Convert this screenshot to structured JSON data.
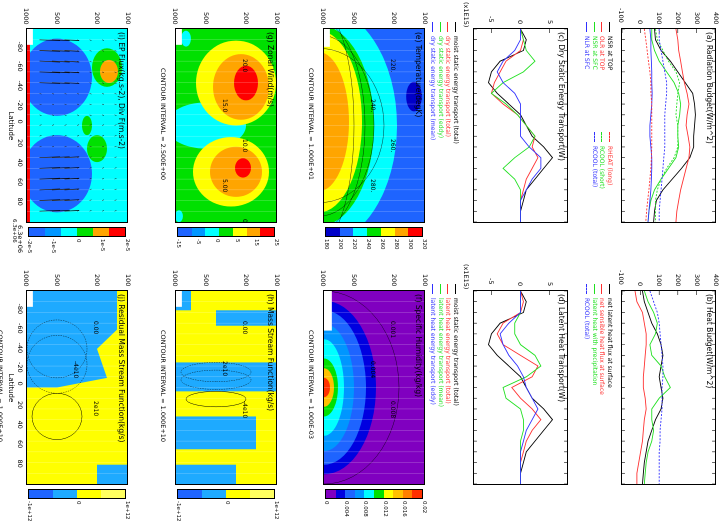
{
  "colors": {
    "black": "#000000",
    "red": "#ff3030",
    "green": "#20e020",
    "blue": "#3030ff"
  },
  "latitudes": [
    -90,
    -80,
    -70,
    -60,
    -50,
    -40,
    -30,
    -20,
    -10,
    0,
    10,
    20,
    30,
    40,
    50,
    60,
    70,
    80,
    90
  ],
  "pressure_ticks": [
    "100",
    "200",
    "500",
    "1000"
  ],
  "lat_tick_labels": [
    "-80",
    "-60",
    "-40",
    "-20",
    "0",
    "20",
    "40",
    "60",
    "80"
  ],
  "xlabel": "Latitude",
  "chart_data": [
    {
      "id": "a",
      "type": "line",
      "title": "(a) Radiation Budget(W/m^2)",
      "ylim": [
        -100,
        400
      ],
      "yticks": [
        "400",
        "300",
        "200",
        "100",
        "0",
        "-100"
      ],
      "series": [
        {
          "name": "NSR at TOP",
          "color": "#000000",
          "dash": false,
          "values": [
            75,
            80,
            110,
            160,
            200,
            240,
            280,
            290,
            295,
            290,
            285,
            285,
            265,
            220,
            170,
            120,
            85,
            75,
            70
          ]
        },
        {
          "name": "OLR at TOP",
          "color": "#ff3030",
          "dash": false,
          "values": [
            190,
            200,
            205,
            215,
            225,
            235,
            250,
            260,
            250,
            245,
            255,
            265,
            260,
            245,
            230,
            215,
            205,
            195,
            190
          ]
        },
        {
          "name": "NSR at SFC",
          "color": "#20e020",
          "dash": false,
          "values": [
            60,
            60,
            75,
            100,
            140,
            180,
            205,
            215,
            210,
            200,
            200,
            205,
            190,
            150,
            110,
            75,
            55,
            45,
            40
          ]
        },
        {
          "name": "NLR at SFC",
          "color": "#3030ff",
          "dash": false,
          "values": [
            50,
            55,
            55,
            58,
            60,
            60,
            62,
            60,
            55,
            50,
            50,
            55,
            60,
            60,
            58,
            55,
            50,
            45,
            40
          ]
        },
        {
          "name": "RHEAT (long)",
          "color": "#ff3030",
          "dash": true,
          "values": [
            20,
            28,
            35,
            42,
            50,
            55,
            55,
            60,
            60,
            60,
            60,
            60,
            58,
            55,
            50,
            45,
            38,
            32,
            28
          ]
        },
        {
          "name": "RCOOL (short)",
          "color": "#20e020",
          "dash": true,
          "values": [
            80,
            90,
            120,
            150,
            190,
            210,
            200,
            195,
            190,
            200,
            200,
            200,
            180,
            140,
            110,
            90,
            80,
            80,
            80
          ]
        },
        {
          "name": "RCOOL (total)",
          "color": "#3030ff",
          "dash": true,
          "values": [
            100,
            100,
            110,
            120,
            130,
            140,
            140,
            135,
            130,
            130,
            130,
            130,
            125,
            120,
            115,
            110,
            105,
            100,
            100
          ]
        }
      ]
    },
    {
      "id": "b",
      "type": "line",
      "title": "(b) Heat Budget(W/m^2)",
      "ylim": [
        -100,
        400
      ],
      "yticks": [
        "400",
        "300",
        "200",
        "100",
        "0",
        "-100"
      ],
      "series": [
        {
          "name": "net latent heat flux at surface",
          "color": "#000000",
          "dash": false,
          "values": [
            10,
            20,
            40,
            60,
            90,
            110,
            120,
            110,
            100,
            110,
            120,
            110,
            80,
            60,
            40,
            30,
            20,
            15,
            10
          ]
        },
        {
          "name": "net sensible heat flux at surface",
          "color": "#ff3030",
          "dash": false,
          "values": [
            -30,
            -20,
            10,
            20,
            30,
            30,
            25,
            20,
            15,
            15,
            25,
            30,
            20,
            15,
            10,
            0,
            -10,
            -20,
            -20
          ]
        },
        {
          "name": "latent heat with precipitation",
          "color": "#20e020",
          "dash": false,
          "values": [
            20,
            40,
            70,
            90,
            80,
            50,
            60,
            110,
            130,
            160,
            100,
            60,
            60,
            70,
            60,
            40,
            30,
            25,
            20
          ]
        },
        {
          "name": "RCOOL (total)",
          "color": "#3030ff",
          "dash": true,
          "values": [
            50,
            70,
            90,
            100,
            105,
            110,
            115,
            120,
            120,
            115,
            115,
            115,
            110,
            105,
            105,
            100,
            100,
            100,
            100
          ]
        }
      ]
    },
    {
      "id": "c",
      "type": "line",
      "title": "(c) Dry Static Energy Transport(W)",
      "scale_label": "(x1E15)",
      "ylim": [
        -8,
        8
      ],
      "yticks": [
        "5",
        "0",
        "-5"
      ],
      "series": [
        {
          "name": "moist static energy transport (total)",
          "color": "#000000",
          "dash": false,
          "values": [
            0,
            1,
            0.5,
            -3.5,
            -5,
            -5.5,
            -4,
            -2,
            0,
            1,
            2,
            4,
            5.5,
            4,
            2.5,
            1,
            0.5,
            0,
            0
          ]
        },
        {
          "name": "dry static energy transport (total)",
          "color": "#ff3030",
          "dash": false,
          "values": [
            0,
            0.5,
            0,
            -2.5,
            -3.5,
            -4.5,
            -5,
            -3,
            -0.5,
            1,
            2.5,
            2,
            3,
            2,
            1,
            0.5,
            0,
            0,
            0
          ]
        },
        {
          "name": "dry static energy transport (eddy)",
          "color": "#20e020",
          "dash": false,
          "values": [
            0,
            0.5,
            1,
            2.5,
            0.5,
            -3,
            -5,
            -2.5,
            -0.5,
            1,
            2.5,
            1.5,
            -1,
            -3,
            -1,
            0,
            0,
            0,
            0
          ]
        },
        {
          "name": "dry static energy transport (mean)",
          "color": "#3030ff",
          "dash": false,
          "values": [
            0,
            0,
            -1,
            -3,
            -4,
            -3,
            -1,
            0,
            0,
            0,
            0,
            1.5,
            3.5,
            3.5,
            2,
            1,
            0,
            0,
            0
          ]
        }
      ]
    },
    {
      "id": "d",
      "type": "line",
      "title": "(d) Latent Heat Transport(W)",
      "scale_label": "(x1E15)",
      "ylim": [
        -8,
        8
      ],
      "yticks": [
        "5",
        "0",
        "-5"
      ],
      "series": [
        {
          "name": "moist static energy transport (total)",
          "color": "#000000",
          "dash": false,
          "values": [
            0,
            1,
            0.5,
            -3.5,
            -5,
            -5.5,
            -4,
            -2,
            0,
            1,
            2,
            4,
            5.5,
            4,
            2.5,
            1,
            0.5,
            0,
            0
          ]
        },
        {
          "name": "latent heat energy transport (total)",
          "color": "#ff3030",
          "dash": false,
          "values": [
            0,
            0.5,
            0,
            -3,
            -4,
            -3,
            0,
            3,
            2,
            -1.5,
            0,
            2,
            3.5,
            2,
            1,
            0.5,
            0,
            0,
            0
          ]
        },
        {
          "name": "latent heat energy transport (mean)",
          "color": "#20e020",
          "dash": false,
          "values": [
            0,
            0,
            0,
            -1,
            -1,
            0,
            2.5,
            3.5,
            1,
            -3,
            -2.5,
            0,
            0.5,
            0.5,
            0,
            0,
            0,
            0,
            0
          ]
        },
        {
          "name": "latent heat energy transport (eddy)",
          "color": "#3030ff",
          "dash": false,
          "values": [
            0,
            0,
            0,
            -2,
            -3.5,
            -3,
            -2,
            -0.5,
            0.5,
            1,
            2,
            3,
            2,
            1,
            0.5,
            0,
            0,
            0,
            0
          ]
        }
      ]
    },
    {
      "id": "e",
      "type": "heatmap",
      "title": "(e) Temperature(degK)",
      "contour_interval": "CONTOUR INTERVAL = 1.000E+01",
      "contour_labels": [
        "220.",
        "240.",
        "260.",
        "280."
      ],
      "colorbar": {
        "labels": [
          "180",
          "200",
          "220",
          "240",
          "260",
          "280",
          "300",
          "320"
        ],
        "colors": [
          "#0000c8",
          "#1e64ff",
          "#00ffff",
          "#00e000",
          "#ffff00",
          "#ffa500",
          "#ff0000"
        ]
      }
    },
    {
      "id": "f",
      "type": "heatmap",
      "title": "(f) Specific Humidity(kg/kg)",
      "contour_interval": "CONTOUR INTERVAL = 1.000E-03",
      "contour_labels": [
        "0.001",
        "0.004",
        "0.008"
      ],
      "colorbar": {
        "labels": [
          "0",
          "0.004",
          "0.008",
          "0.012",
          "0.016",
          "0.02"
        ],
        "colors": [
          "#8000c0",
          "#0000e0",
          "#1e64ff",
          "#0096ff",
          "#00ffff",
          "#00e000",
          "#ffff00",
          "#ffc000",
          "#ff8000",
          "#ff3000"
        ]
      }
    },
    {
      "id": "g",
      "type": "heatmap",
      "title": "(g) Zonal Wind(m/s)",
      "contour_interval": "CONTOUR INTERVAL = 2.500E+00",
      "contour_labels": [
        "20.0",
        "15.0",
        "10.0",
        "5.00",
        "0.00"
      ],
      "colorbar": {
        "labels": [
          "-15",
          "-5",
          "0",
          "5",
          "15",
          "25"
        ],
        "colors": [
          "#1e64ff",
          "#0096ff",
          "#00ffff",
          "#00e000",
          "#ffff00",
          "#ffa500",
          "#ff0000"
        ]
      }
    },
    {
      "id": "h",
      "type": "heatmap",
      "title": "(h) Mass Stream Function(kg/s)",
      "contour_interval": "CONTOUR INTERVAL = 1.000E+10",
      "contour_labels": [
        "0.00",
        "2e10",
        "-4e10"
      ],
      "colorbar": {
        "labels": [
          "-1e+12",
          "0",
          "1e+12"
        ],
        "colors": [
          "#1e64ff",
          "#1eaaff",
          "#ffff00",
          "#ffff60"
        ]
      }
    },
    {
      "id": "i",
      "type": "heatmap",
      "title": "(i) EP Flux(kg.s-2), Div F(m.s-2)",
      "arrow_scale": "6.3e+06",
      "arrow_scale2": "6.3e+06",
      "colorbar": {
        "labels": [
          "-2e-5",
          "-1e-5",
          "0",
          "1e-5",
          "2e-5"
        ],
        "colors": [
          "#1e64ff",
          "#0096ff",
          "#00ffff",
          "#00e000",
          "#ffa500",
          "#ff0000"
        ]
      }
    },
    {
      "id": "j",
      "type": "heatmap",
      "title": "(j) Residual Mass Stream Function(kg/s)",
      "contour_interval": "CONTOUR INTERVAL = 1.000E+10",
      "contour_labels": [
        "0.00",
        "-4e10",
        "2e10"
      ],
      "colorbar": {
        "labels": [
          "-1e+12",
          "0",
          "1e+12"
        ],
        "colors": [
          "#1e64ff",
          "#1eaaff",
          "#ffff00",
          "#ffff60"
        ]
      }
    }
  ]
}
